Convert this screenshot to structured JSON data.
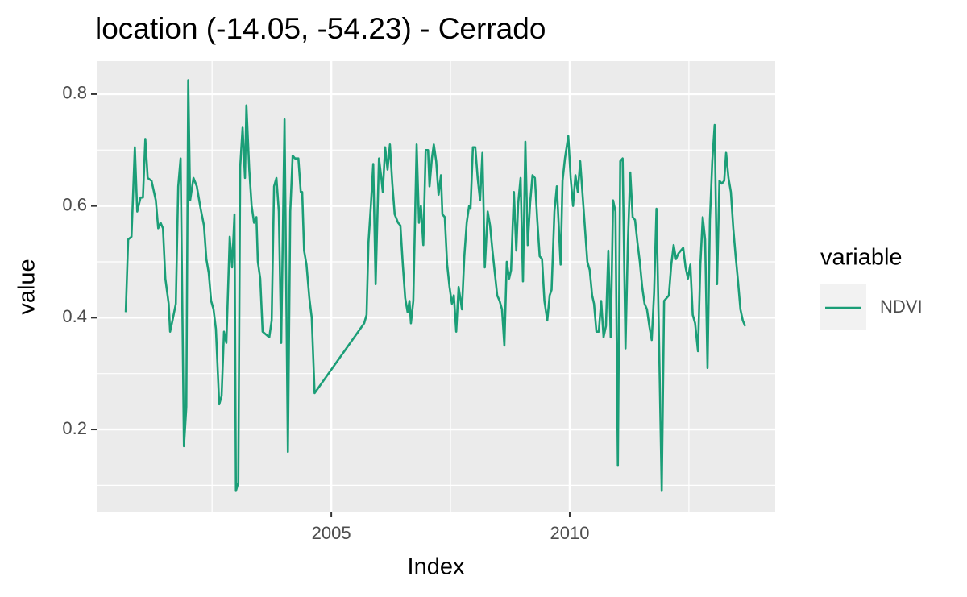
{
  "chart_data": {
    "type": "line",
    "title": "location (-14.05, -54.23) - Cerrado",
    "x_label": "Index",
    "y_label": "value",
    "legend_title": "variable",
    "x": [
      2000.69,
      2000.74,
      2000.81,
      2000.88,
      2000.93,
      2001.0,
      2001.05,
      2001.1,
      2001.15,
      2001.23,
      2001.32,
      2001.37,
      2001.42,
      2001.47,
      2001.52,
      2001.59,
      2001.62,
      2001.67,
      2001.74,
      2001.79,
      2001.84,
      2001.91,
      2001.96,
      2002.0,
      2002.04,
      2002.11,
      2002.18,
      2002.26,
      2002.33,
      2002.38,
      2002.43,
      2002.48,
      2002.53,
      2002.58,
      2002.65,
      2002.7,
      2002.75,
      2002.8,
      2002.87,
      2002.92,
      2002.97,
      2003.0,
      2003.05,
      2003.09,
      2003.14,
      2003.19,
      2003.22,
      2003.28,
      2003.33,
      2003.38,
      2003.43,
      2003.46,
      2003.51,
      2003.56,
      2003.63,
      2003.7,
      2003.75,
      2003.8,
      2003.85,
      2003.9,
      2003.95,
      2004.02,
      2004.09,
      2004.14,
      2004.19,
      2004.24,
      2004.31,
      2004.36,
      2004.39,
      2004.43,
      2004.48,
      2004.54,
      2004.59,
      2004.65,
      2005.69,
      2005.74,
      2005.78,
      2005.83,
      2005.88,
      2005.93,
      2006.0,
      2006.05,
      2006.08,
      2006.13,
      2006.18,
      2006.23,
      2006.28,
      2006.33,
      2006.4,
      2006.45,
      2006.5,
      2006.55,
      2006.6,
      2006.64,
      2006.67,
      2006.72,
      2006.79,
      2006.84,
      2006.88,
      2006.93,
      2006.98,
      2007.03,
      2007.06,
      2007.11,
      2007.15,
      2007.2,
      2007.25,
      2007.3,
      2007.33,
      2007.38,
      2007.43,
      2007.48,
      2007.53,
      2007.57,
      2007.62,
      2007.67,
      2007.74,
      2007.79,
      2007.84,
      2007.89,
      2007.92,
      2007.97,
      2008.02,
      2008.07,
      2008.12,
      2008.17,
      2008.22,
      2008.28,
      2008.33,
      2008.38,
      2008.43,
      2008.48,
      2008.53,
      2008.58,
      2008.63,
      2008.68,
      2008.73,
      2008.77,
      2008.83,
      2008.88,
      2008.92,
      2008.97,
      2009.02,
      2009.07,
      2009.12,
      2009.17,
      2009.22,
      2009.27,
      2009.32,
      2009.37,
      2009.42,
      2009.47,
      2009.53,
      2009.58,
      2009.62,
      2009.68,
      2009.73,
      2009.81,
      2009.85,
      2009.9,
      2009.97,
      2010.02,
      2010.07,
      2010.12,
      2010.17,
      2010.22,
      2010.27,
      2010.32,
      2010.37,
      2010.42,
      2010.47,
      2010.51,
      2010.56,
      2010.61,
      2010.66,
      2010.71,
      2010.76,
      2010.81,
      2010.86,
      2010.91,
      2010.96,
      2011.01,
      2011.06,
      2011.11,
      2011.17,
      2011.22,
      2011.27,
      2011.32,
      2011.37,
      2011.42,
      2011.47,
      2011.52,
      2011.57,
      2011.62,
      2011.67,
      2011.72,
      2011.77,
      2011.82,
      2011.87,
      2011.93,
      2011.98,
      2012.03,
      2012.08,
      2012.13,
      2012.18,
      2012.23,
      2012.28,
      2012.33,
      2012.38,
      2012.43,
      2012.48,
      2012.53,
      2012.58,
      2012.63,
      2012.69,
      2012.74,
      2012.79,
      2012.84,
      2012.89,
      2012.94,
      2012.99,
      2013.04,
      2013.09,
      2013.14,
      2013.19,
      2013.24,
      2013.28,
      2013.33,
      2013.38,
      2013.43,
      2013.48,
      2013.53,
      2013.58,
      2013.63,
      2013.68
    ],
    "series": [
      {
        "name": "NDVI",
        "color": "#1b9e77",
        "values": [
          0.41,
          0.54,
          0.545,
          0.705,
          0.59,
          0.615,
          0.615,
          0.72,
          0.65,
          0.645,
          0.61,
          0.56,
          0.57,
          0.56,
          0.47,
          0.425,
          0.375,
          0.395,
          0.425,
          0.635,
          0.685,
          0.17,
          0.24,
          0.825,
          0.61,
          0.65,
          0.635,
          0.595,
          0.565,
          0.505,
          0.48,
          0.43,
          0.415,
          0.38,
          0.245,
          0.26,
          0.375,
          0.355,
          0.545,
          0.49,
          0.585,
          0.09,
          0.105,
          0.67,
          0.74,
          0.65,
          0.78,
          0.665,
          0.6,
          0.57,
          0.58,
          0.5,
          0.47,
          0.375,
          0.37,
          0.365,
          0.395,
          0.635,
          0.65,
          0.59,
          0.355,
          0.755,
          0.16,
          0.59,
          0.69,
          0.685,
          0.685,
          0.625,
          0.625,
          0.52,
          0.495,
          0.435,
          0.4,
          0.265,
          0.39,
          0.405,
          0.535,
          0.6,
          0.675,
          0.46,
          0.685,
          0.65,
          0.625,
          0.705,
          0.665,
          0.71,
          0.64,
          0.585,
          0.57,
          0.565,
          0.495,
          0.435,
          0.41,
          0.43,
          0.39,
          0.43,
          0.71,
          0.57,
          0.6,
          0.53,
          0.7,
          0.7,
          0.635,
          0.685,
          0.71,
          0.68,
          0.62,
          0.655,
          0.585,
          0.58,
          0.495,
          0.455,
          0.425,
          0.44,
          0.375,
          0.455,
          0.415,
          0.51,
          0.57,
          0.6,
          0.595,
          0.705,
          0.705,
          0.65,
          0.61,
          0.695,
          0.49,
          0.59,
          0.565,
          0.52,
          0.48,
          0.44,
          0.43,
          0.415,
          0.35,
          0.5,
          0.47,
          0.485,
          0.625,
          0.52,
          0.605,
          0.65,
          0.465,
          0.715,
          0.53,
          0.605,
          0.655,
          0.65,
          0.575,
          0.51,
          0.505,
          0.43,
          0.395,
          0.44,
          0.45,
          0.59,
          0.635,
          0.495,
          0.645,
          0.685,
          0.725,
          0.65,
          0.6,
          0.655,
          0.625,
          0.68,
          0.62,
          0.56,
          0.5,
          0.485,
          0.44,
          0.425,
          0.375,
          0.375,
          0.43,
          0.365,
          0.385,
          0.52,
          0.365,
          0.61,
          0.59,
          0.135,
          0.68,
          0.685,
          0.345,
          0.535,
          0.66,
          0.58,
          0.575,
          0.535,
          0.5,
          0.455,
          0.425,
          0.415,
          0.385,
          0.36,
          0.445,
          0.595,
          0.375,
          0.09,
          0.43,
          0.435,
          0.44,
          0.495,
          0.53,
          0.505,
          0.515,
          0.52,
          0.525,
          0.49,
          0.47,
          0.495,
          0.405,
          0.39,
          0.34,
          0.495,
          0.58,
          0.54,
          0.31,
          0.575,
          0.68,
          0.745,
          0.46,
          0.645,
          0.64,
          0.645,
          0.695,
          0.65,
          0.625,
          0.56,
          0.51,
          0.465,
          0.415,
          0.395,
          0.385
        ]
      }
    ],
    "xlim": [
      2000.08,
      2014.31
    ],
    "xticks": [
      2005,
      2010
    ],
    "x_minor_ticks": [
      2002.5,
      2007.5,
      2012.5
    ],
    "ylim": [
      0.053,
      0.859
    ],
    "yticks": [
      0.2,
      0.4,
      0.6,
      0.8
    ],
    "y_minor_ticks": [
      0.1,
      0.3,
      0.5,
      0.7
    ],
    "grid": true
  }
}
